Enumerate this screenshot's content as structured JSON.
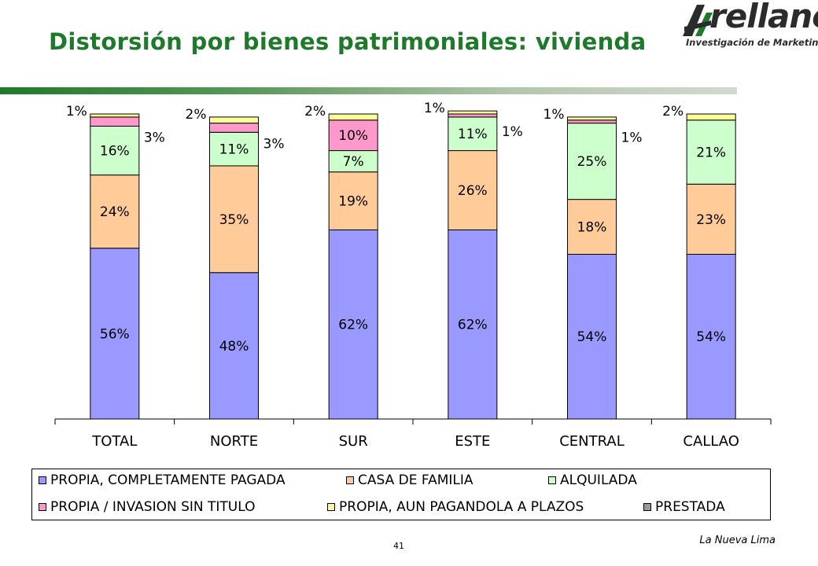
{
  "title": "Distorsión por bienes patrimoniales: vivienda",
  "logo": {
    "word": "rellano",
    "tagline": "Investigación de Marketing"
  },
  "page_number": "41",
  "footer": "La Nueva Lima",
  "colors": {
    "title": "#1e7a2a",
    "propia_pagada": "#9999ff",
    "casa_familia": "#ffcc99",
    "alquilada": "#ccffcc",
    "invasion": "#ff99cc",
    "plazos": "#ffff99",
    "prestada": "#999999"
  },
  "chart_data": {
    "type": "bar",
    "stacked": true,
    "categories": [
      "TOTAL",
      "NORTE",
      "SUR",
      "ESTE",
      "CENTRAL",
      "CALLAO"
    ],
    "series": [
      {
        "name": "PROPIA, COMPLETAMENTE PAGADA",
        "color": "#9999ff",
        "values": [
          56,
          48,
          62,
          62,
          54,
          54
        ],
        "labels": [
          "56%",
          "48%",
          "62%",
          "62%",
          "54%",
          "54%"
        ]
      },
      {
        "name": "CASA DE FAMILIA",
        "color": "#ffcc99",
        "values": [
          24,
          35,
          19,
          26,
          18,
          23
        ],
        "labels": [
          "24%",
          "35%",
          "19%",
          "26%",
          "18%",
          "23%"
        ]
      },
      {
        "name": "ALQUILADA",
        "color": "#ccffcc",
        "values": [
          16,
          11,
          7,
          11,
          25,
          21
        ],
        "labels": [
          "16%",
          "11%",
          "7%",
          "11%",
          "25%",
          "21%"
        ]
      },
      {
        "name": "PROPIA / INVASION SIN TITULO",
        "color": "#ff99cc",
        "values": [
          3,
          3,
          10,
          1,
          1,
          0
        ],
        "labels": [
          "3%",
          "3%",
          "10%",
          "1%",
          "1%",
          ""
        ]
      },
      {
        "name": "PROPIA, AUN PAGANDOLA A PLAZOS",
        "color": "#ffff99",
        "values": [
          1,
          2,
          2,
          1,
          1,
          2
        ],
        "labels": [
          "1%",
          "2%",
          "2%",
          "1%",
          "1%",
          "2%"
        ]
      },
      {
        "name": "PRESTADA",
        "color": "#999999",
        "values": [
          0,
          0,
          0,
          0,
          0,
          0
        ],
        "labels": [
          "",
          "",
          "",
          "",
          "",
          ""
        ]
      }
    ],
    "ylim": [
      0,
      100
    ],
    "grid": false,
    "legend_position": "bottom"
  }
}
